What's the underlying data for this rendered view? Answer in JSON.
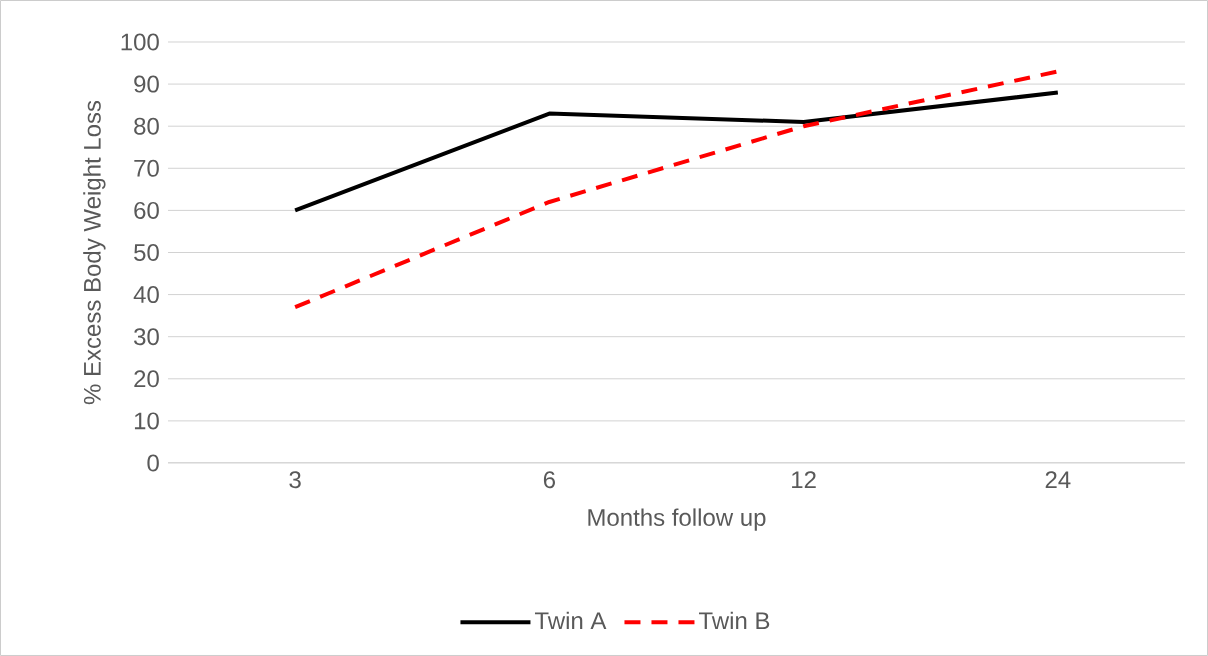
{
  "chart_data": {
    "type": "line",
    "xlabel": "Months follow up",
    "ylabel": "% Excess Body Weight Loss",
    "categories": [
      "3",
      "6",
      "12",
      "24"
    ],
    "series": [
      {
        "name": "Twin A",
        "color": "#000000",
        "line_style": "solid",
        "values": [
          60,
          83,
          81,
          88
        ]
      },
      {
        "name": "Twin B",
        "color": "#ff0000",
        "line_style": "dashed",
        "values": [
          37,
          62,
          80,
          93
        ]
      }
    ],
    "ylim": [
      0,
      100
    ],
    "yticks": [
      0,
      10,
      20,
      30,
      40,
      50,
      60,
      70,
      80,
      90,
      100
    ],
    "grid": "y",
    "legend": "bottom",
    "marker": "none"
  }
}
